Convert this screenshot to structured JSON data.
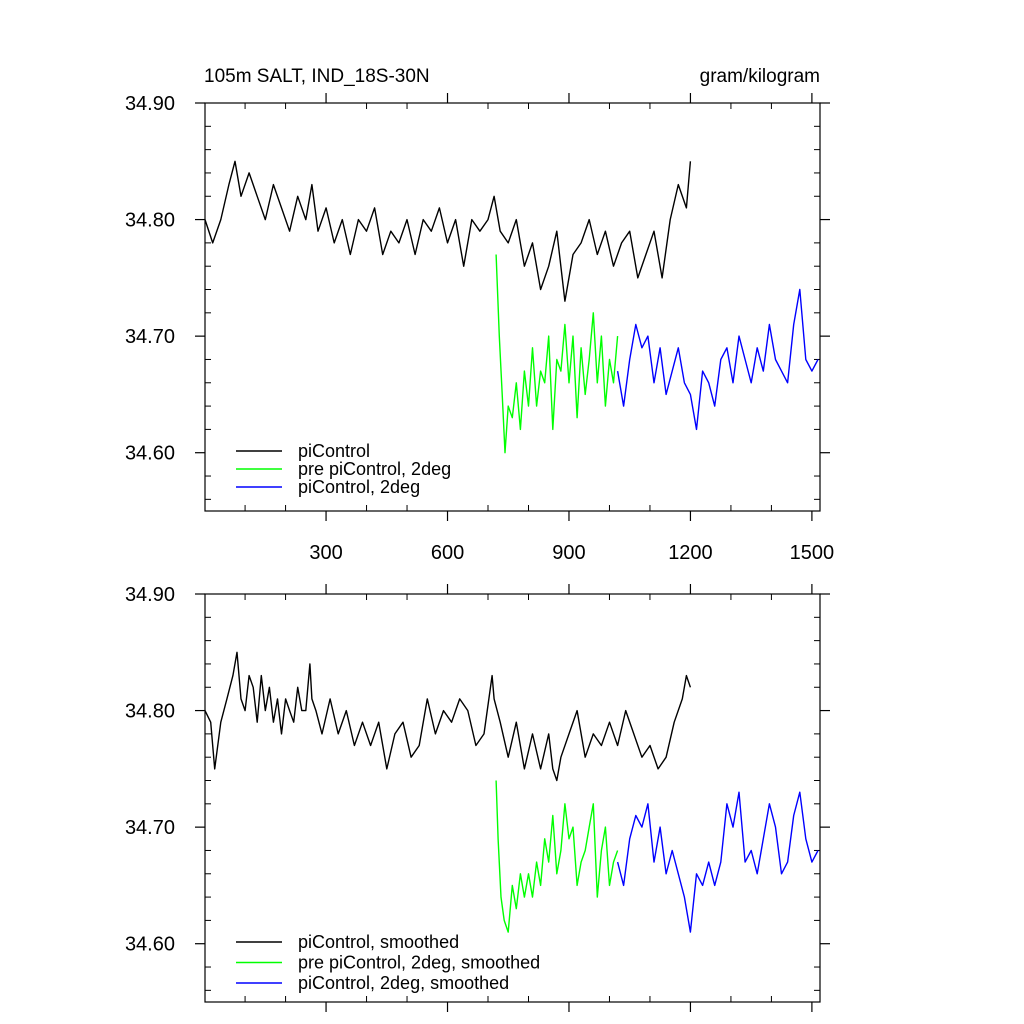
{
  "chart_data": [
    {
      "type": "line",
      "title": "105m SALT, IND_18S-30N",
      "units": "gram/kilogram",
      "xlabel": "",
      "ylabel": "",
      "xlim": [
        1,
        1520
      ],
      "ylim": [
        34.55,
        34.9
      ],
      "x_ticks": [
        300,
        600,
        900,
        1200,
        1500
      ],
      "x_tick_labels": [
        "300",
        "600",
        "900",
        "1200",
        "1500"
      ],
      "y_ticks": [
        34.6,
        34.7,
        34.8,
        34.9
      ],
      "y_tick_labels": [
        "34.60",
        "34.70",
        "34.80",
        "34.90"
      ],
      "grid": false,
      "legend_position": "bottom-left",
      "series": [
        {
          "name": "piControl",
          "color": "#000000",
          "x": [
            1,
            20,
            40,
            60,
            75,
            90,
            110,
            130,
            150,
            170,
            190,
            210,
            230,
            250,
            265,
            280,
            300,
            320,
            340,
            360,
            380,
            400,
            420,
            440,
            460,
            480,
            500,
            520,
            540,
            560,
            580,
            600,
            620,
            640,
            660,
            680,
            700,
            715,
            730,
            750,
            770,
            790,
            810,
            830,
            850,
            870,
            890,
            910,
            930,
            950,
            970,
            990,
            1010,
            1030,
            1050,
            1070,
            1090,
            1110,
            1130,
            1150,
            1170,
            1190,
            1200
          ],
          "y": [
            34.8,
            34.78,
            34.8,
            34.83,
            34.85,
            34.82,
            34.84,
            34.82,
            34.8,
            34.83,
            34.81,
            34.79,
            34.82,
            34.8,
            34.83,
            34.79,
            34.81,
            34.78,
            34.8,
            34.77,
            34.8,
            34.79,
            34.81,
            34.77,
            34.79,
            34.78,
            34.8,
            34.77,
            34.8,
            34.79,
            34.81,
            34.78,
            34.8,
            34.76,
            34.8,
            34.79,
            34.8,
            34.82,
            34.79,
            34.78,
            34.8,
            34.76,
            34.78,
            34.74,
            34.76,
            34.79,
            34.73,
            34.77,
            34.78,
            34.8,
            34.77,
            34.79,
            34.76,
            34.78,
            34.79,
            34.75,
            34.77,
            34.79,
            34.75,
            34.8,
            34.83,
            34.81,
            34.85
          ]
        },
        {
          "name": "pre piControl, 2deg",
          "color": "#00ff00",
          "x": [
            720,
            728,
            735,
            742,
            750,
            760,
            770,
            780,
            790,
            800,
            810,
            820,
            830,
            840,
            850,
            860,
            870,
            880,
            890,
            900,
            910,
            920,
            930,
            940,
            950,
            960,
            970,
            980,
            990,
            1000,
            1010,
            1020
          ],
          "y": [
            34.77,
            34.7,
            34.65,
            34.6,
            34.64,
            34.63,
            34.66,
            34.62,
            34.67,
            34.64,
            34.69,
            34.64,
            34.67,
            34.66,
            34.7,
            34.62,
            34.68,
            34.67,
            34.71,
            34.66,
            34.7,
            34.63,
            34.69,
            34.65,
            34.68,
            34.72,
            34.66,
            34.7,
            34.64,
            34.68,
            34.66,
            34.7
          ]
        },
        {
          "name": "piControl, 2deg",
          "color": "#0000ff",
          "x": [
            1020,
            1035,
            1050,
            1065,
            1080,
            1095,
            1110,
            1125,
            1140,
            1155,
            1170,
            1185,
            1200,
            1215,
            1230,
            1245,
            1260,
            1275,
            1290,
            1305,
            1320,
            1335,
            1350,
            1365,
            1380,
            1395,
            1410,
            1425,
            1440,
            1455,
            1470,
            1485,
            1500,
            1515
          ],
          "y": [
            34.67,
            34.64,
            34.68,
            34.71,
            34.69,
            34.7,
            34.66,
            34.69,
            34.65,
            34.67,
            34.69,
            34.66,
            34.65,
            34.62,
            34.67,
            34.66,
            34.64,
            34.68,
            34.69,
            34.66,
            34.7,
            34.68,
            34.66,
            34.69,
            34.67,
            34.71,
            34.68,
            34.67,
            34.66,
            34.71,
            34.74,
            34.68,
            34.67,
            34.68
          ]
        }
      ]
    },
    {
      "type": "line",
      "title": "",
      "xlabel": "",
      "ylabel": "",
      "xlim": [
        1,
        1520
      ],
      "ylim": [
        34.55,
        34.9
      ],
      "x_ticks": [
        300,
        600,
        900,
        1200,
        1500
      ],
      "x_tick_labels": [],
      "y_ticks": [
        34.6,
        34.7,
        34.8,
        34.9
      ],
      "y_tick_labels": [
        "34.60",
        "34.70",
        "34.80",
        "34.90"
      ],
      "grid": false,
      "legend_position": "bottom-left",
      "series": [
        {
          "name": "piControl, smoothed",
          "color": "#000000",
          "x": [
            1,
            15,
            25,
            40,
            55,
            70,
            80,
            90,
            100,
            110,
            120,
            130,
            140,
            150,
            160,
            170,
            180,
            190,
            200,
            210,
            220,
            230,
            240,
            250,
            260,
            265,
            275,
            290,
            310,
            330,
            350,
            370,
            390,
            410,
            430,
            450,
            470,
            490,
            510,
            530,
            550,
            570,
            590,
            610,
            630,
            650,
            670,
            690,
            710,
            715,
            730,
            750,
            770,
            790,
            810,
            830,
            850,
            860,
            870,
            880,
            900,
            920,
            940,
            960,
            980,
            1000,
            1020,
            1040,
            1060,
            1080,
            1100,
            1120,
            1140,
            1160,
            1180,
            1190,
            1200
          ],
          "y": [
            34.8,
            34.79,
            34.75,
            34.79,
            34.81,
            34.83,
            34.85,
            34.81,
            34.8,
            34.83,
            34.82,
            34.79,
            34.83,
            34.8,
            34.82,
            34.79,
            34.81,
            34.78,
            34.81,
            34.8,
            34.79,
            34.82,
            34.8,
            34.8,
            34.84,
            34.81,
            34.8,
            34.78,
            34.81,
            34.78,
            34.8,
            34.77,
            34.79,
            34.77,
            34.79,
            34.75,
            34.78,
            34.79,
            34.76,
            34.77,
            34.81,
            34.78,
            34.8,
            34.79,
            34.81,
            34.8,
            34.77,
            34.78,
            34.83,
            34.81,
            34.79,
            34.76,
            34.79,
            34.75,
            34.78,
            34.75,
            34.78,
            34.75,
            34.74,
            34.76,
            34.78,
            34.8,
            34.76,
            34.78,
            34.77,
            34.79,
            34.77,
            34.8,
            34.78,
            34.76,
            34.77,
            34.75,
            34.76,
            34.79,
            34.81,
            34.83,
            34.82
          ]
        },
        {
          "name": "pre piControl, 2deg, smoothed",
          "color": "#00ff00",
          "x": [
            720,
            725,
            732,
            740,
            750,
            760,
            770,
            780,
            790,
            800,
            810,
            820,
            830,
            840,
            850,
            860,
            870,
            880,
            890,
            900,
            910,
            920,
            930,
            940,
            950,
            960,
            970,
            980,
            990,
            1000,
            1010,
            1020
          ],
          "y": [
            34.74,
            34.69,
            34.64,
            34.62,
            34.61,
            34.65,
            34.63,
            34.66,
            34.64,
            34.66,
            34.64,
            34.67,
            34.65,
            34.69,
            34.67,
            34.71,
            34.66,
            34.68,
            34.72,
            34.69,
            34.7,
            34.65,
            34.67,
            34.68,
            34.7,
            34.72,
            34.64,
            34.68,
            34.7,
            34.65,
            34.67,
            34.68
          ]
        },
        {
          "name": "piControl, 2deg, smoothed",
          "color": "#0000ff",
          "x": [
            1020,
            1035,
            1050,
            1065,
            1080,
            1095,
            1110,
            1125,
            1140,
            1155,
            1170,
            1185,
            1200,
            1215,
            1230,
            1245,
            1260,
            1275,
            1290,
            1305,
            1320,
            1335,
            1350,
            1365,
            1380,
            1395,
            1410,
            1425,
            1440,
            1455,
            1470,
            1485,
            1500,
            1515
          ],
          "y": [
            34.67,
            34.65,
            34.69,
            34.71,
            34.7,
            34.72,
            34.67,
            34.7,
            34.66,
            34.68,
            34.66,
            34.64,
            34.61,
            34.66,
            34.65,
            34.67,
            34.65,
            34.67,
            34.72,
            34.7,
            34.73,
            34.67,
            34.68,
            34.66,
            34.69,
            34.72,
            34.7,
            34.66,
            34.67,
            34.71,
            34.73,
            34.69,
            34.67,
            34.68
          ]
        }
      ]
    }
  ]
}
